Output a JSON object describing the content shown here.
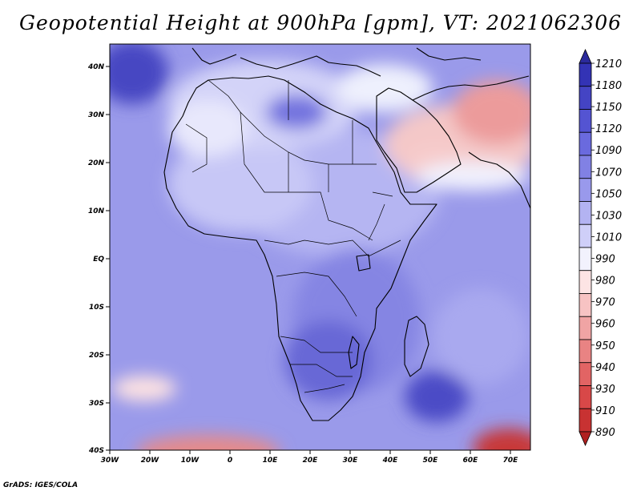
{
  "title": "Geopotential Height at 900hPa [gpm], VT: 2021062306",
  "credit": "GrADS: IGES/COLA",
  "map": {
    "lon_labels": [
      "30W",
      "20W",
      "10W",
      "0",
      "10E",
      "20E",
      "30E",
      "40E",
      "50E",
      "60E",
      "70E"
    ],
    "lat_labels": [
      "40N",
      "30N",
      "20N",
      "10N",
      "EQ",
      "10S",
      "20S",
      "30S",
      "40S"
    ]
  },
  "colorbar": {
    "labels": [
      "1210",
      "1180",
      "1150",
      "1120",
      "1090",
      "1070",
      "1050",
      "1030",
      "1010",
      "990",
      "980",
      "970",
      "960",
      "950",
      "940",
      "930",
      "910",
      "890"
    ],
    "colors": [
      "#2b2a9c",
      "#3333b5",
      "#4444c4",
      "#5454d2",
      "#6a6ade",
      "#8181e4",
      "#9999ec",
      "#b3b3f2",
      "#cfcff8",
      "#f2f2fd",
      "#fde4e4",
      "#f7c3c3",
      "#f0a4a4",
      "#e98383",
      "#e26464",
      "#d84848",
      "#c83232",
      "#b02020"
    ]
  },
  "colors": {
    "background": "#9a9aea",
    "outline": "#000000"
  }
}
